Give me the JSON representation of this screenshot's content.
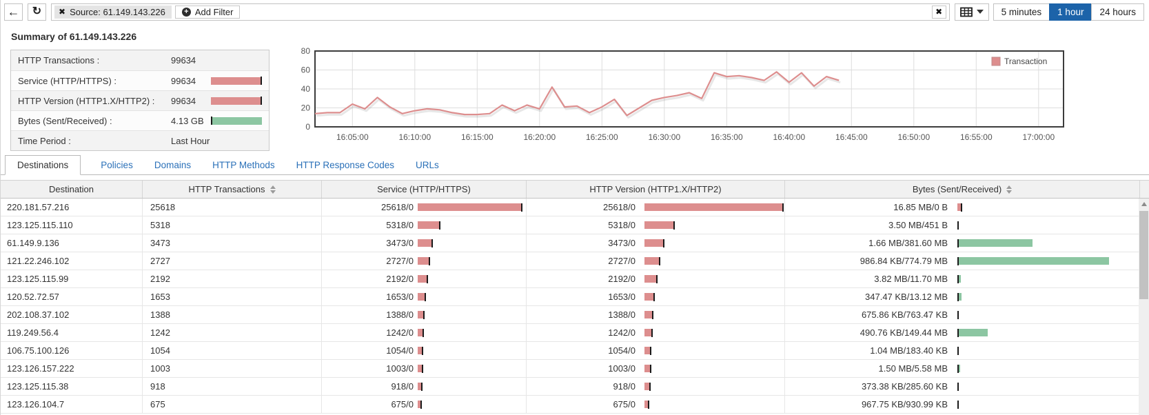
{
  "colors": {
    "accent_blue": "#1c63a9",
    "link_blue": "#2a70b8",
    "bar_red": "#dd8e8e",
    "bar_green": "#8cc6a2",
    "tick_black": "#1a1a1a",
    "chart_frame": "#3c3c3c",
    "grid_line": "#dddddd"
  },
  "toolbar": {
    "back_icon": "←",
    "refresh_icon": "↻",
    "remove_filter_icon": "✖",
    "filter_chip": "Source: 61.149.143.226",
    "add_filter_label": "Add Filter",
    "clear_all_icon": "✖",
    "time_ranges": [
      "5 minutes",
      "1 hour",
      "24 hours"
    ],
    "active_time_range": "1 hour"
  },
  "summary": {
    "title": "Summary of 61.149.143.226",
    "rows": [
      {
        "label": "HTTP Transactions :",
        "value": "99634",
        "bar": "none"
      },
      {
        "label": "Service (HTTP/HTTPS) :",
        "value": "99634",
        "bar": "red"
      },
      {
        "label": "HTTP Version (HTTP1.X/HTTP2) :",
        "value": "99634",
        "bar": "red"
      },
      {
        "label": "Bytes (Sent/Received) :",
        "value": "4.13 GB",
        "bar": "green"
      },
      {
        "label": "Time Period :",
        "value": "Last Hour",
        "bar": "none"
      }
    ]
  },
  "chart_data": {
    "type": "line",
    "title": "",
    "legend": [
      {
        "label": "Transaction",
        "color": "#dd8e8e"
      }
    ],
    "legend_position": "top-right",
    "grid": true,
    "ylim": [
      0,
      80
    ],
    "yticks": [
      0,
      20,
      40,
      60,
      80
    ],
    "x_tick_labels": [
      "16:05:00",
      "16:10:00",
      "16:15:00",
      "16:20:00",
      "16:25:00",
      "16:30:00",
      "16:35:00",
      "16:40:00",
      "16:45:00",
      "16:50:00",
      "16:55:00",
      "17:00:00"
    ],
    "x_tick_minutes": [
      5,
      10,
      15,
      20,
      25,
      30,
      35,
      40,
      45,
      50,
      55,
      60
    ],
    "x_range_minutes": [
      2,
      62
    ],
    "x_unit": "minutes after 16:00",
    "series": [
      {
        "name": "Transaction",
        "color": "#dd8e8e",
        "x_minutes": [
          2,
          3,
          4,
          5,
          6,
          7,
          8,
          9,
          10,
          11,
          12,
          13,
          14,
          15,
          16,
          17,
          18,
          19,
          20,
          21,
          22,
          23,
          24,
          25,
          26,
          27,
          28,
          29,
          30,
          31,
          32,
          33,
          34,
          35,
          36,
          37,
          38,
          39,
          40,
          41,
          42,
          43,
          44
        ],
        "values": [
          14,
          15,
          15,
          24,
          19,
          31,
          21,
          14,
          17,
          19,
          18,
          15,
          13,
          13,
          14,
          23,
          17,
          23,
          19,
          42,
          21,
          22,
          15,
          21,
          29,
          12,
          20,
          28,
          31,
          33,
          36,
          30,
          57,
          53,
          54,
          52,
          49,
          58,
          47,
          57,
          43,
          53,
          49
        ]
      }
    ]
  },
  "tabs": {
    "items": [
      "Destinations",
      "Policies",
      "Domains",
      "HTTP Methods",
      "HTTP Response Codes",
      "URLs"
    ],
    "active": "Destinations"
  },
  "table": {
    "columns": [
      {
        "label": "Destination",
        "sortable": false
      },
      {
        "label": "HTTP Transactions",
        "sortable": true
      },
      {
        "label": "Service (HTTP/HTTPS)",
        "sortable": false
      },
      {
        "label": "HTTP Version (HTTP1.X/HTTP2)",
        "sortable": false
      },
      {
        "label": "Bytes (Sent/Received)",
        "sortable": true
      }
    ],
    "max_transactions": 25618,
    "max_bytes_mb": 774.79,
    "rows": [
      {
        "destination": "220.181.57.216",
        "transactions": 25618,
        "service": "25618/0",
        "http_version": "25618/0",
        "bytes": "16.85 MB/0 B",
        "sent_mb": 16.85,
        "recv_mb": 0
      },
      {
        "destination": "123.125.115.110",
        "transactions": 5318,
        "service": "5318/0",
        "http_version": "5318/0",
        "bytes": "3.50 MB/451 B",
        "sent_mb": 3.5,
        "recv_mb": 0.0004
      },
      {
        "destination": "61.149.9.136",
        "transactions": 3473,
        "service": "3473/0",
        "http_version": "3473/0",
        "bytes": "1.66 MB/381.60 MB",
        "sent_mb": 1.66,
        "recv_mb": 381.6
      },
      {
        "destination": "121.22.246.102",
        "transactions": 2727,
        "service": "2727/0",
        "http_version": "2727/0",
        "bytes": "986.84 KB/774.79 MB",
        "sent_mb": 0.96,
        "recv_mb": 774.79
      },
      {
        "destination": "123.125.115.99",
        "transactions": 2192,
        "service": "2192/0",
        "http_version": "2192/0",
        "bytes": "3.82 MB/11.70 MB",
        "sent_mb": 3.82,
        "recv_mb": 11.7
      },
      {
        "destination": "120.52.72.57",
        "transactions": 1653,
        "service": "1653/0",
        "http_version": "1653/0",
        "bytes": "347.47 KB/13.12 MB",
        "sent_mb": 0.34,
        "recv_mb": 13.12
      },
      {
        "destination": "202.108.37.102",
        "transactions": 1388,
        "service": "1388/0",
        "http_version": "1388/0",
        "bytes": "675.86 KB/763.47 KB",
        "sent_mb": 0.66,
        "recv_mb": 0.75
      },
      {
        "destination": "119.249.56.4",
        "transactions": 1242,
        "service": "1242/0",
        "http_version": "1242/0",
        "bytes": "490.76 KB/149.44 MB",
        "sent_mb": 0.48,
        "recv_mb": 149.44
      },
      {
        "destination": "106.75.100.126",
        "transactions": 1054,
        "service": "1054/0",
        "http_version": "1054/0",
        "bytes": "1.04 MB/183.40 KB",
        "sent_mb": 1.04,
        "recv_mb": 0.18
      },
      {
        "destination": "123.126.157.222",
        "transactions": 1003,
        "service": "1003/0",
        "http_version": "1003/0",
        "bytes": "1.50 MB/5.58 MB",
        "sent_mb": 1.5,
        "recv_mb": 5.58
      },
      {
        "destination": "123.125.115.38",
        "transactions": 918,
        "service": "918/0",
        "http_version": "918/0",
        "bytes": "373.38 KB/285.60 KB",
        "sent_mb": 0.36,
        "recv_mb": 0.28
      },
      {
        "destination": "123.126.104.7",
        "transactions": 675,
        "service": "675/0",
        "http_version": "675/0",
        "bytes": "967.75 KB/930.99 KB",
        "sent_mb": 0.95,
        "recv_mb": 0.91
      }
    ]
  }
}
